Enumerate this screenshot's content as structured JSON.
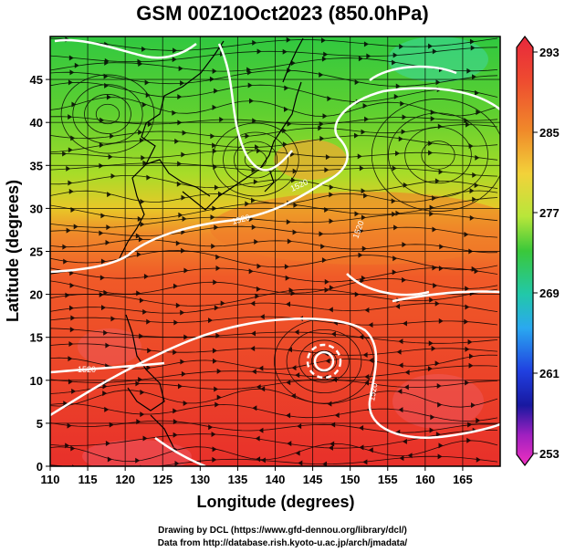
{
  "title": "GSM 00Z10Oct2023 (850.0hPa)",
  "map": {
    "x_axis_label": "Longitude (degrees)",
    "y_axis_label": "Latitude  (degrees)",
    "lon_range": [
      110,
      170
    ],
    "lat_range": [
      0,
      50
    ],
    "lon_ticks": [
      "110",
      "115",
      "120",
      "125",
      "130",
      "135",
      "140",
      "145",
      "150",
      "155",
      "160",
      "165"
    ],
    "lat_ticks": [
      "0",
      "5",
      "10",
      "15",
      "20",
      "25",
      "30",
      "35",
      "40",
      "45"
    ],
    "grid": true,
    "contour_labels": [
      "1520",
      "1520",
      "1520",
      "1520",
      "1520"
    ]
  },
  "colorbar": {
    "tick_labels": [
      "293",
      "285",
      "277",
      "269",
      "261",
      "253"
    ],
    "colors": [
      "#e8283c",
      "#f08a2a",
      "#f2d23a",
      "#b8e63a",
      "#3ac83a",
      "#22c8a8",
      "#2aa8f0",
      "#2040e0",
      "#1818a0",
      "#a020c0",
      "#f030c0"
    ]
  },
  "credits": {
    "line1": "Drawing by DCL (https://www.gfd-dennou.org/library/dcl/)",
    "line2": "Data from http://database.rish.kyoto-u.ac.jp/arch/jmadata/"
  }
}
